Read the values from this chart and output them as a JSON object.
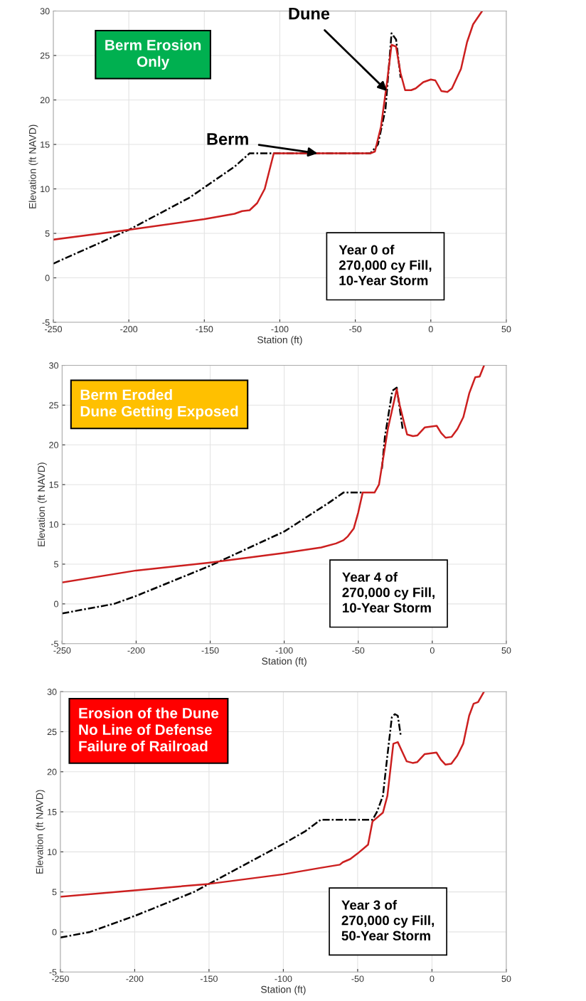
{
  "chart_data": [
    {
      "type": "line",
      "xlabel": "Station (ft)",
      "ylabel": "Elevation (ft NAVD)",
      "xlim": [
        -250,
        50
      ],
      "ylim": [
        -5,
        30
      ],
      "xticks": [
        -250,
        -200,
        -150,
        -100,
        -50,
        0,
        50
      ],
      "yticks": [
        -5,
        0,
        5,
        10,
        15,
        20,
        25,
        30
      ],
      "grid": true,
      "series": [
        {
          "color": "#000000",
          "line_style": "dashed",
          "x": [
            -250,
            -200,
            -160,
            -130,
            -120,
            -105,
            -40,
            -35,
            -30,
            -26,
            -23,
            -20
          ],
          "values": [
            1.6,
            5.4,
            9,
            12.5,
            14,
            14,
            14,
            15,
            19,
            27.5,
            26.8,
            22.5
          ]
        },
        {
          "color": "#cc1f1f",
          "line_style": "solid",
          "x": [
            -250,
            -200,
            -150,
            -130,
            -125,
            -120,
            -115,
            -110,
            -107,
            -104,
            -40,
            -37,
            -33,
            -29,
            -26,
            -23,
            -20,
            -17,
            -13,
            -10,
            -5,
            0,
            3,
            7,
            11,
            14,
            20,
            24,
            28,
            30,
            34
          ],
          "values": [
            4.3,
            5.4,
            6.6,
            7.2,
            7.5,
            7.6,
            8.4,
            10,
            12,
            14,
            14,
            14.2,
            17,
            22,
            26.2,
            26,
            23,
            21.1,
            21.1,
            21.3,
            22,
            22.3,
            22.2,
            21,
            20.9,
            21.3,
            23.5,
            26.5,
            28.5,
            29,
            30
          ]
        }
      ],
      "annotations": [
        {
          "text": "Berm Erosion\nOnly"
        },
        {
          "text": "Dune",
          "x": -29,
          "y": 21
        },
        {
          "text": "Berm",
          "x": -75,
          "y": 14
        },
        "Year 0 of\n270,000 cy Fill,\n10-Year Storm"
      ]
    },
    {
      "type": "line",
      "xlabel": "Station (ft)",
      "ylabel": "Elevation (ft NAVD)",
      "xlim": [
        -250,
        50
      ],
      "ylim": [
        -5,
        30
      ],
      "xticks": [
        -250,
        -200,
        -150,
        -100,
        -50,
        0,
        50
      ],
      "yticks": [
        -5,
        0,
        5,
        10,
        15,
        20,
        25,
        30
      ],
      "grid": true,
      "series": [
        {
          "color": "#000000",
          "line_style": "dashed",
          "x": [
            -250,
            -215,
            -200,
            -150,
            -100,
            -90,
            -70,
            -60,
            -47,
            -39,
            -36,
            -34,
            -32,
            -27,
            -24,
            -20
          ],
          "values": [
            -1.2,
            0,
            1,
            4.8,
            9.1,
            10.3,
            12.7,
            14,
            14,
            null,
            null,
            17,
            21,
            26.8,
            27.2,
            22
          ]
        },
        {
          "color": "#cc1f1f",
          "line_style": "solid",
          "x": [
            -250,
            -200,
            -150,
            -100,
            -75,
            -65,
            -60,
            -57,
            -53,
            -50,
            -47,
            -39,
            -36,
            -30,
            -24,
            -22,
            -17,
            -13,
            -10,
            -5,
            3,
            6,
            9,
            13,
            17,
            21,
            25,
            27,
            29,
            32,
            35
          ],
          "values": [
            2.7,
            4.2,
            5.2,
            6.4,
            7.1,
            7.6,
            8,
            8.5,
            9.5,
            11.5,
            14,
            14,
            15,
            22,
            27,
            25,
            21.3,
            21.1,
            21.2,
            22.2,
            22.4,
            21.5,
            20.9,
            21,
            22,
            23.5,
            26.5,
            27.5,
            28.5,
            28.6,
            30
          ]
        }
      ],
      "annotations": [
        {
          "text": "Berm Eroded\nDune Getting Exposed"
        },
        "Year 4 of\n270,000 cy Fill,\n10-Year Storm"
      ]
    },
    {
      "type": "line",
      "xlabel": "Station (ft)",
      "ylabel": "Elevation (ft NAVD)",
      "xlim": [
        -250,
        50
      ],
      "ylim": [
        -5,
        30
      ],
      "xticks": [
        -250,
        -200,
        -150,
        -100,
        -50,
        0,
        50
      ],
      "yticks": [
        -5,
        0,
        5,
        10,
        15,
        20,
        25,
        30
      ],
      "grid": true,
      "series": [
        {
          "color": "#000000",
          "line_style": "dashed",
          "x": [
            -250,
            -230,
            -200,
            -160,
            -150,
            -120,
            -100,
            -85,
            -75,
            -40,
            -37,
            -33,
            -30,
            -27,
            -25,
            -23,
            -21
          ],
          "values": [
            -0.7,
            0,
            2,
            5,
            6,
            9,
            11,
            12.6,
            14,
            14,
            15,
            17,
            22,
            26.8,
            27.2,
            27,
            24.5
          ]
        },
        {
          "color": "#cc1f1f",
          "line_style": "solid",
          "x": [
            -250,
            -200,
            -150,
            -100,
            -75,
            -62,
            -60,
            -55,
            -50,
            -43,
            -40,
            -33,
            -30,
            -26,
            -23,
            -20,
            -17,
            -13,
            -10,
            -5,
            3,
            6,
            9,
            13,
            17,
            21,
            25,
            28,
            31,
            35
          ],
          "values": [
            4.4,
            5.2,
            6,
            7.2,
            8,
            8.4,
            8.7,
            9.1,
            9.8,
            10.9,
            13.8,
            14.9,
            17,
            23.5,
            23.7,
            22.5,
            21.3,
            21.1,
            21.2,
            22.2,
            22.4,
            21.5,
            20.9,
            21,
            22,
            23.5,
            27,
            28.5,
            28.7,
            30
          ]
        }
      ],
      "annotations": [
        {
          "text": "Erosion of the Dune\nNo Line of Defense\nFailure of Railroad"
        },
        "Year 3 of\n270,000 cy Fill,\n50-Year Storm"
      ]
    }
  ]
}
